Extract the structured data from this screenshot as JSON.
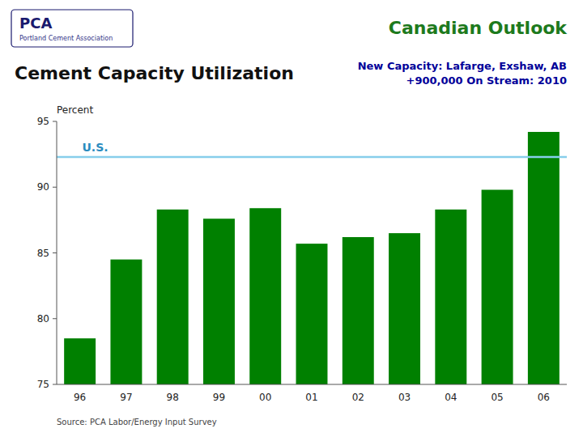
{
  "chart_data": {
    "type": "bar",
    "title": "Cement Capacity Utilization",
    "header": "Canadian Outlook",
    "logo": [
      "PCA",
      "Portland Cement Association"
    ],
    "subtitle": [
      "New Capacity: Lafarge, Exshaw, AB",
      "+900,000 On Stream: 2010"
    ],
    "y_label": "Percent",
    "source": "Source: PCA Labor/Energy Input Survey",
    "categories": [
      "96",
      "97",
      "98",
      "99",
      "00",
      "01",
      "02",
      "03",
      "04",
      "05",
      "06"
    ],
    "values": [
      78.5,
      84.5,
      88.3,
      87.6,
      88.4,
      85.7,
      86.2,
      86.5,
      88.3,
      89.8,
      94.2
    ],
    "color": "#008000",
    "ylim": [
      75,
      95
    ],
    "yticks": [
      75,
      80,
      85,
      90,
      95
    ],
    "grid": false,
    "annotations": [
      {
        "type": "hline",
        "value": 92.3,
        "label": "U.S.",
        "color": "#87CEEB"
      }
    ]
  }
}
